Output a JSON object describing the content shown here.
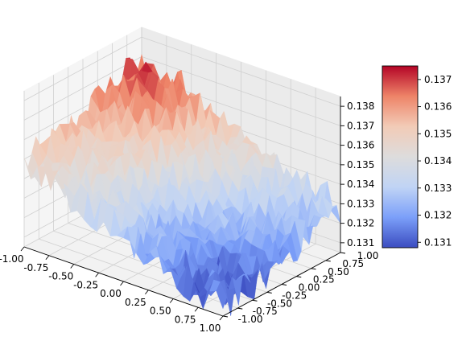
{
  "chart_data": {
    "type": "surface",
    "title": "",
    "xlabel": "",
    "ylabel": "",
    "zlabel": "",
    "colormap": "coolwarm",
    "colormap_stops": [
      "#3b4cc0",
      "#7b9ff9",
      "#c0d4f5",
      "#dddcdc",
      "#f2cbb7",
      "#ee8468",
      "#b40426"
    ],
    "grid": true,
    "xlim": [
      -1.0,
      1.0
    ],
    "ylim": [
      -1.0,
      1.0
    ],
    "zlim": [
      0.1305,
      0.1385
    ],
    "x_ticks": [
      "-1.00",
      "-0.75",
      "-0.50",
      "-0.25",
      "0.00",
      "0.25",
      "0.50",
      "0.75",
      "1.00"
    ],
    "y_ticks": [
      "-1.00",
      "-0.75",
      "-0.50",
      "-0.25",
      "0.00",
      "0.25",
      "0.50",
      "0.75",
      "1.00"
    ],
    "z_ticks": [
      "0.131",
      "0.132",
      "0.133",
      "0.134",
      "0.135",
      "0.136",
      "0.137",
      "0.138"
    ],
    "colorbar": {
      "range": [
        0.1308,
        0.1375
      ],
      "ticks": [
        "0.131",
        "0.132",
        "0.133",
        "0.134",
        "0.135",
        "0.136",
        "0.137"
      ],
      "tick_values": [
        0.131,
        0.132,
        0.133,
        0.134,
        0.135,
        0.136,
        0.137
      ]
    },
    "surface": {
      "grid_size": 30,
      "description_values": "noisy surface, high (~0.1375) near x=-1,y=-1 corner region back-left, low (~0.131) near x=0.5..1,y=-1..0",
      "corner_values": {
        "x_min_y_min": 0.1348,
        "x_min_y_max": 0.1362,
        "x_max_y_min": 0.1312,
        "x_max_y_max": 0.1328
      },
      "peak": {
        "x": -0.6,
        "y": 0.6,
        "z": 0.1375
      },
      "trough": {
        "x": 0.4,
        "y": -0.4,
        "z": 0.1312
      },
      "noise_amplitude": 0.0009
    }
  }
}
